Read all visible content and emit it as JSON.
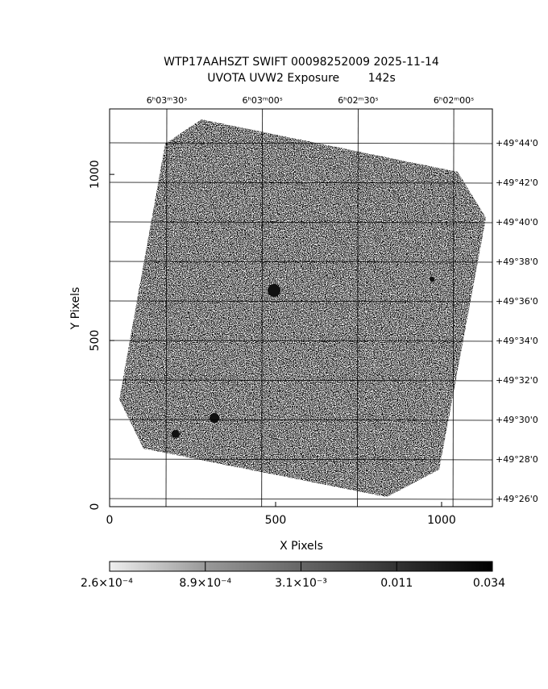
{
  "chart_data": {
    "type": "image",
    "title": "WTP17AAHSZT SWIFT 00098252009 2025-11-14",
    "subtitle": "UVOTA UVW2 Exposure        142s",
    "x_label": "X Pixels",
    "y_label": "Y Pixels",
    "xlim": [
      0,
      1153
    ],
    "ylim": [
      0,
      1197
    ],
    "xticks": [
      0,
      500,
      1000
    ],
    "yticks": [
      0,
      500,
      1000
    ],
    "ra_labels": [
      "6ʰ03ᵐ30ˢ",
      "6ʰ03ᵐ00ˢ",
      "6ʰ02ᵐ30ˢ",
      "6ʰ02ᵐ00ˢ"
    ],
    "dec_labels": [
      "+49°44'0",
      "+49°42'0",
      "+49°40'0",
      "+49°38'0",
      "+49°36'0",
      "+49°34'0",
      "+49°32'0",
      "+49°30'0",
      "+49°28'0",
      "+49°26'0"
    ],
    "colorbar_labels": [
      "2.6×10⁻⁴",
      "8.9×10⁻⁴",
      "3.1×10⁻³",
      "0.011",
      "0.034"
    ]
  }
}
